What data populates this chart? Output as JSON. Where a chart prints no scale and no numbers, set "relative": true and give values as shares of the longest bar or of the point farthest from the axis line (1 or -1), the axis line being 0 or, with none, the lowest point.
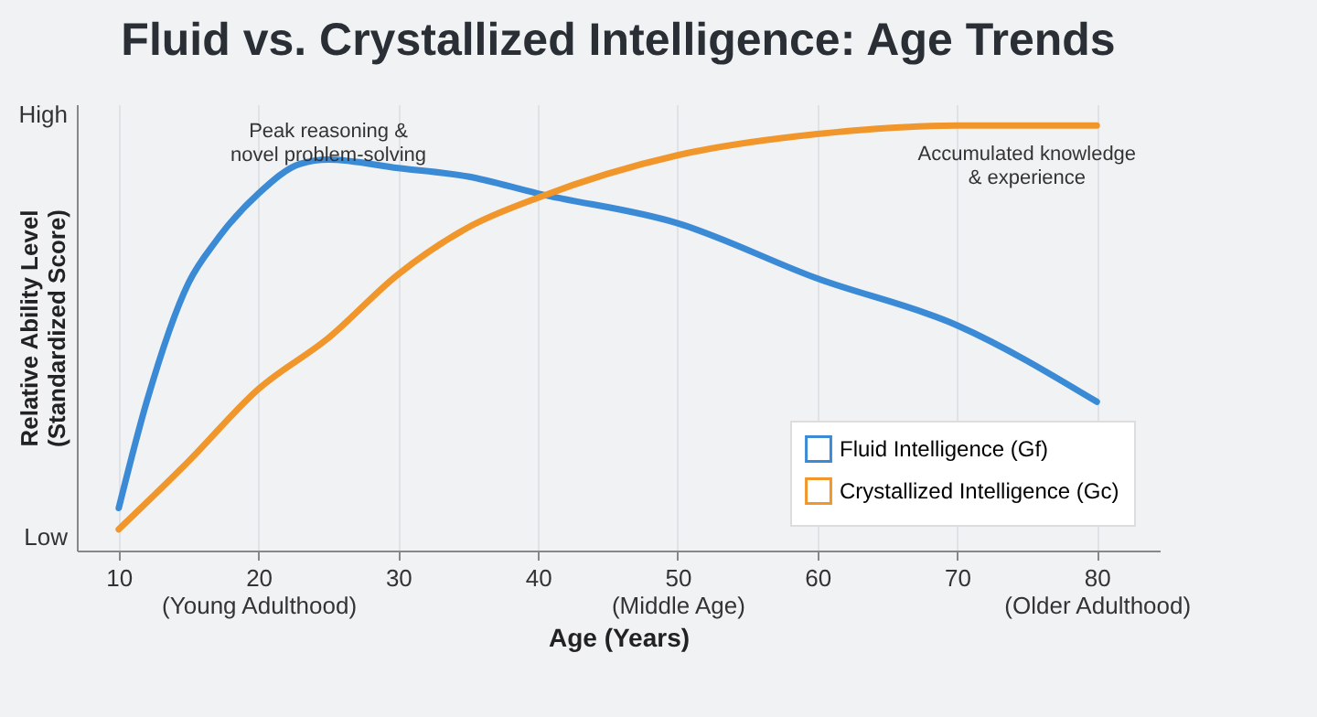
{
  "chart_data": {
    "type": "line",
    "title": "Fluid vs. Crystallized Intelligence: Age Trends",
    "xlabel": "Age (Years)",
    "ylabel": "Relative Ability Level\n(Standardized Score)",
    "xlim": [
      7,
      84.5
    ],
    "xticks": [
      10,
      {
        "value": 20,
        "label": "20\n(Young Adulthood)"
      },
      30,
      40,
      {
        "value": 50,
        "label": "50\n(Middle Age)"
      },
      60,
      70,
      {
        "value": 80,
        "label": "80\n(Older Adulthood)"
      }
    ],
    "relative": true,
    "grid": "x",
    "legend": "bottom right",
    "series": [
      {
        "name": "Fluid Intelligence (Gf)",
        "color": "#3b8ad6",
        "x": [
          10,
          12,
          15,
          17,
          20,
          23,
          25,
          30,
          35,
          40,
          50,
          60,
          70,
          80
        ],
        "values": [
          0.1,
          0.35,
          0.63,
          0.73,
          0.84,
          0.91,
          0.92,
          0.9,
          0.88,
          0.84,
          0.77,
          0.64,
          0.53,
          0.35
        ]
      },
      {
        "name": "Crystallized Intelligence (Gc)",
        "color": "#f0962a",
        "x": [
          10,
          15,
          20,
          25,
          30,
          35,
          40,
          50,
          60,
          70,
          80
        ],
        "values": [
          0.05,
          0.21,
          0.38,
          0.5,
          0.65,
          0.76,
          0.83,
          0.93,
          0.98,
          1,
          1
        ]
      }
    ],
    "annotations": [
      {
        "text": "Peak reasoning &\nnovel problem-solving",
        "x": 25,
        "y": 0.92
      },
      {
        "text": "Accumulated knowledge\n& experience",
        "x": 75,
        "y": 1
      },
      "High",
      "Low"
    ]
  }
}
